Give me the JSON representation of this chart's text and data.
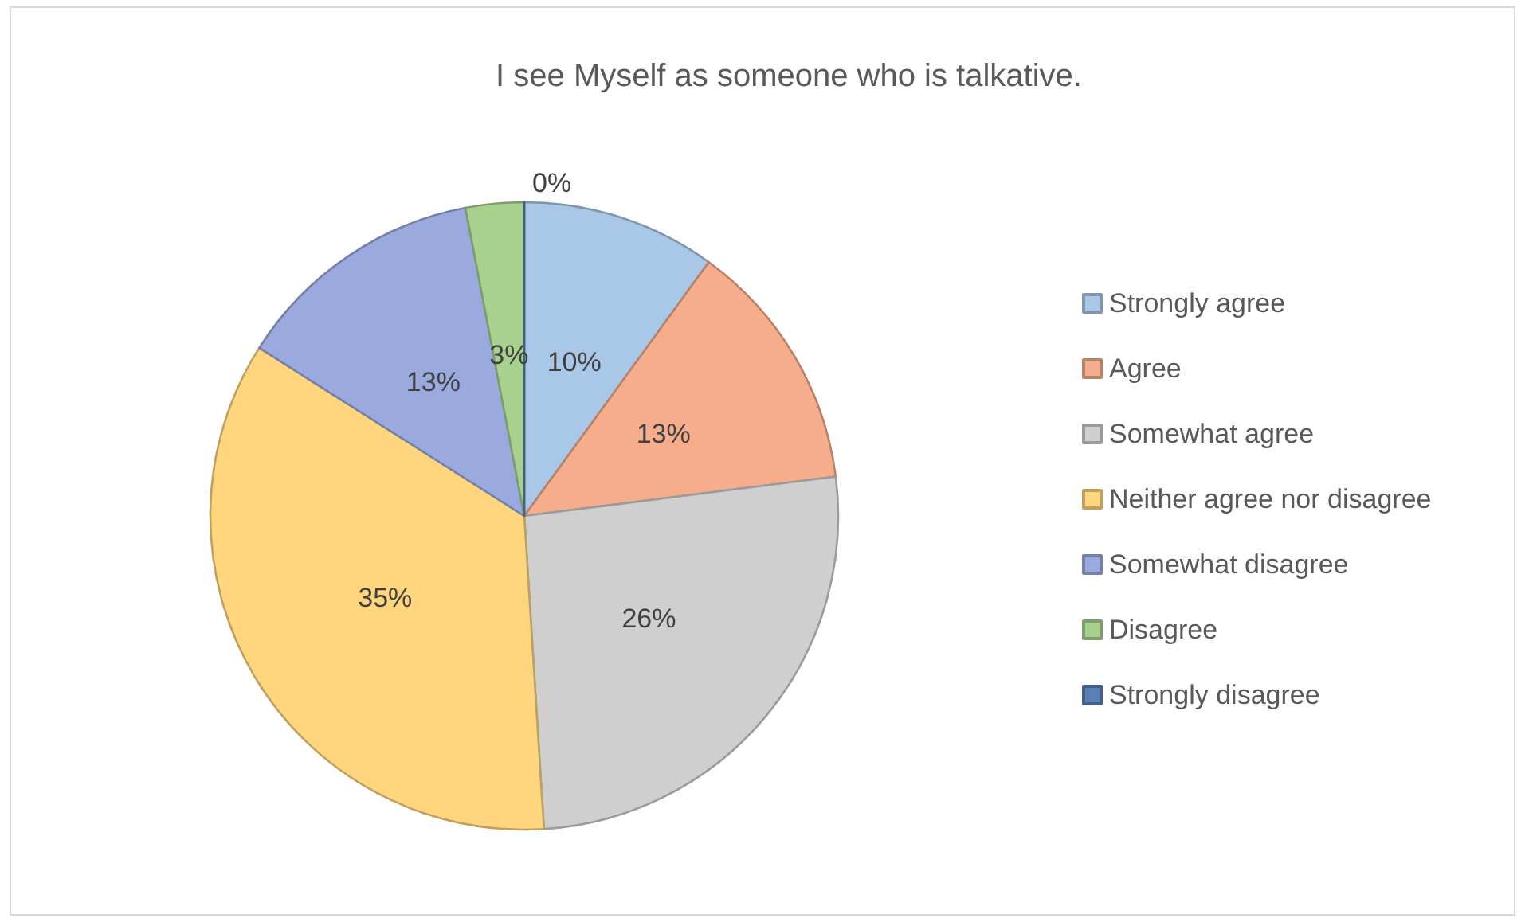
{
  "chart_data": {
    "type": "pie",
    "title": "I see Myself as someone who is talkative.",
    "categories": [
      "Strongly agree",
      "Agree",
      "Somewhat agree",
      "Neither agree nor disagree",
      "Somewhat disagree",
      "Disagree",
      "Strongly disagree"
    ],
    "values": [
      10,
      13,
      26,
      35,
      13,
      3,
      0
    ],
    "colors": [
      "#a9c8e8",
      "#f5ad8c",
      "#cfcfcf",
      "#ffd57e",
      "#9aaade",
      "#a9d18e",
      "#5a7fb5"
    ],
    "value_labels": [
      "10%",
      "13%",
      "26%",
      "35%",
      "13%",
      "3%",
      "0%"
    ],
    "legend": "right"
  }
}
